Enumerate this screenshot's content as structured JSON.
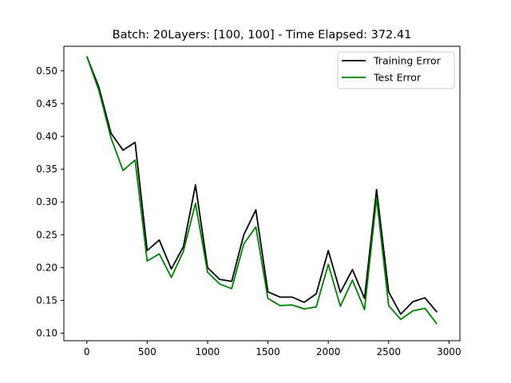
{
  "chart_data": {
    "type": "line",
    "title": "Batch: 20Layers: [100, 100] - Time Elapsed: 372.41",
    "xlabel": "",
    "ylabel": "",
    "xlim": [
      -190,
      3090
    ],
    "ylim": [
      0.0885,
      0.5375
    ],
    "xticks": [
      0,
      500,
      1000,
      1500,
      2000,
      2500,
      3000
    ],
    "xtick_labels": [
      "0",
      "500",
      "1000",
      "1500",
      "2000",
      "2500",
      "3000"
    ],
    "yticks": [
      0.1,
      0.15,
      0.2,
      0.25,
      0.3,
      0.35,
      0.4,
      0.45,
      0.5
    ],
    "ytick_labels": [
      "0.10",
      "0.15",
      "0.20",
      "0.25",
      "0.30",
      "0.35",
      "0.40",
      "0.45",
      "0.50"
    ],
    "grid": false,
    "legend_position": "top-right",
    "x": [
      0,
      100,
      200,
      300,
      400,
      500,
      600,
      700,
      800,
      900,
      1000,
      1100,
      1200,
      1300,
      1400,
      1500,
      1600,
      1700,
      1800,
      1900,
      2000,
      2100,
      2200,
      2300,
      2400,
      2500,
      2600,
      2700,
      2800,
      2900
    ],
    "series": [
      {
        "name": "Training Error",
        "color": "#000000",
        "values": [
          0.522,
          0.475,
          0.405,
          0.379,
          0.391,
          0.226,
          0.242,
          0.198,
          0.232,
          0.326,
          0.2,
          0.182,
          0.179,
          0.25,
          0.288,
          0.163,
          0.155,
          0.155,
          0.147,
          0.16,
          0.226,
          0.162,
          0.197,
          0.153,
          0.319,
          0.163,
          0.129,
          0.148,
          0.154,
          0.132
        ]
      },
      {
        "name": "Test Error",
        "color": "#008000",
        "values": [
          0.522,
          0.47,
          0.398,
          0.348,
          0.364,
          0.21,
          0.221,
          0.185,
          0.225,
          0.298,
          0.193,
          0.175,
          0.168,
          0.236,
          0.262,
          0.153,
          0.142,
          0.143,
          0.137,
          0.14,
          0.205,
          0.141,
          0.181,
          0.136,
          0.306,
          0.142,
          0.121,
          0.134,
          0.138,
          0.114
        ]
      }
    ]
  }
}
